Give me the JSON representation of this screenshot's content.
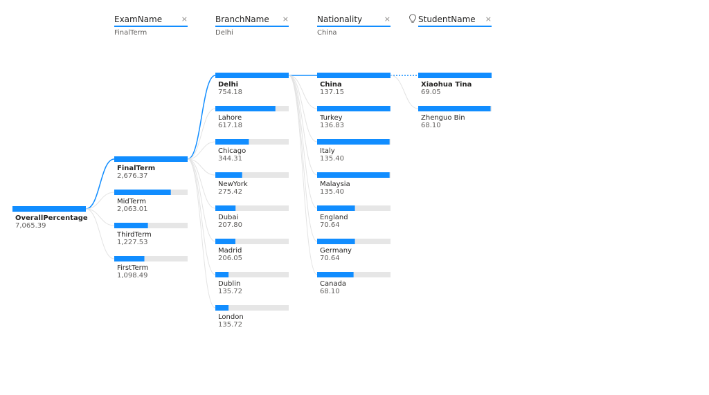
{
  "headers": [
    {
      "title": "ExamName",
      "subtitle": "FinalTerm",
      "close": "×"
    },
    {
      "title": "BranchName",
      "subtitle": "Delhi",
      "close": "×"
    },
    {
      "title": "Nationality",
      "subtitle": "China",
      "close": "×"
    },
    {
      "title": "StudentName",
      "subtitle": "",
      "close": "×",
      "icon": "lightbulb-icon"
    }
  ],
  "chart_data": {
    "type": "decomposition-tree",
    "colors": {
      "bar": "#118dff",
      "track": "#e6e6e6",
      "link": "#118dff",
      "link_faint": "#e3e3e3"
    },
    "levels": [
      {
        "field": "OverallPercentage",
        "selected": 0,
        "nodes": [
          {
            "name": "OverallPercentage",
            "value": 7065.39,
            "label": "7,065.39"
          }
        ]
      },
      {
        "field": "ExamName",
        "selected": 0,
        "nodes": [
          {
            "name": "FinalTerm",
            "value": 2676.37,
            "label": "2,676.37"
          },
          {
            "name": "MidTerm",
            "value": 2063.01,
            "label": "2,063.01"
          },
          {
            "name": "ThirdTerm",
            "value": 1227.53,
            "label": "1,227.53"
          },
          {
            "name": "FirstTerm",
            "value": 1098.49,
            "label": "1,098.49"
          }
        ]
      },
      {
        "field": "BranchName",
        "selected": 0,
        "nodes": [
          {
            "name": "Delhi",
            "value": 754.18,
            "label": "754.18"
          },
          {
            "name": "Lahore",
            "value": 617.18,
            "label": "617.18"
          },
          {
            "name": "Chicago",
            "value": 344.31,
            "label": "344.31"
          },
          {
            "name": "NewYork",
            "value": 275.42,
            "label": "275.42"
          },
          {
            "name": "Dubai",
            "value": 207.8,
            "label": "207.80"
          },
          {
            "name": "Madrid",
            "value": 206.05,
            "label": "206.05"
          },
          {
            "name": "Dublin",
            "value": 135.72,
            "label": "135.72"
          },
          {
            "name": "London",
            "value": 135.72,
            "label": "135.72"
          }
        ]
      },
      {
        "field": "Nationality",
        "selected": 0,
        "nodes": [
          {
            "name": "China",
            "value": 137.15,
            "label": "137.15"
          },
          {
            "name": "Turkey",
            "value": 136.83,
            "label": "136.83"
          },
          {
            "name": "Italy",
            "value": 135.4,
            "label": "135.40"
          },
          {
            "name": "Malaysia",
            "value": 135.4,
            "label": "135.40"
          },
          {
            "name": "England",
            "value": 70.64,
            "label": "70.64"
          },
          {
            "name": "Germany",
            "value": 70.64,
            "label": "70.64"
          },
          {
            "name": "Canada",
            "value": 68.1,
            "label": "68.10"
          }
        ]
      },
      {
        "field": "StudentName",
        "selected": 0,
        "ai_split": true,
        "nodes": [
          {
            "name": "Xiaohua Tina",
            "value": 69.05,
            "label": "69.05"
          },
          {
            "name": "Zhenguo Bin",
            "value": 68.1,
            "label": "68.10"
          }
        ]
      }
    ]
  }
}
